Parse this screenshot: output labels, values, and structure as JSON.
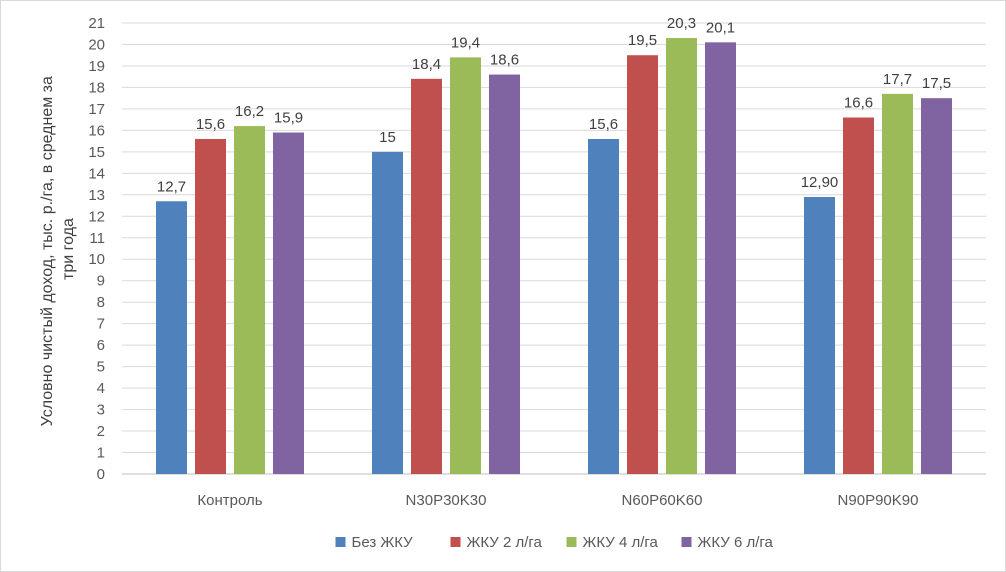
{
  "chart_data": {
    "type": "bar",
    "title": "",
    "xlabel": "",
    "ylabel_lines": [
      "Условно чистый доход, тыс. р./га, в среднем за",
      "три года"
    ],
    "ylim": [
      0,
      21
    ],
    "ytick_step": 1,
    "grid": true,
    "legend_position": "bottom",
    "categories": [
      "Контроль",
      "N30P30K30",
      "N60P60K60",
      "N90P90K90"
    ],
    "series": [
      {
        "name": "Без ЖКУ",
        "color": "#4f81bd",
        "values": [
          12.7,
          15,
          15.6,
          12.9
        ],
        "labels": [
          "12,7",
          "15",
          "15,6",
          "12,90"
        ]
      },
      {
        "name": "ЖКУ 2 л/га",
        "color": "#c0504d",
        "values": [
          15.6,
          18.4,
          19.5,
          16.6
        ],
        "labels": [
          "15,6",
          "18,4",
          "19,5",
          "16,6"
        ]
      },
      {
        "name": "ЖКУ 4 л/га",
        "color": "#9bbb59",
        "values": [
          16.2,
          19.4,
          20.3,
          17.7
        ],
        "labels": [
          "16,2",
          "19,4",
          "20,3",
          "17,7"
        ]
      },
      {
        "name": "ЖКУ 6 л/га",
        "color": "#8064a2",
        "values": [
          15.9,
          18.6,
          20.1,
          17.5
        ],
        "labels": [
          "15,9",
          "18,6",
          "20,1",
          "17,5"
        ]
      }
    ]
  }
}
